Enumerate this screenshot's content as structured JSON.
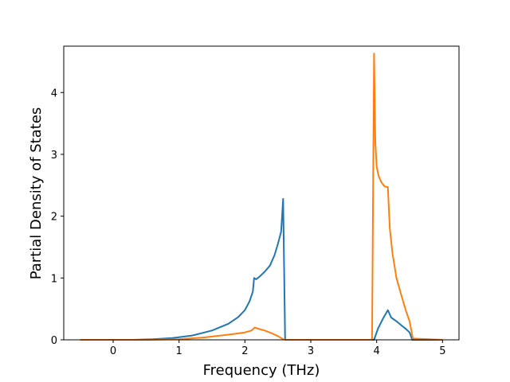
{
  "chart_data": {
    "type": "line",
    "title": "",
    "xlabel": "Frequency (THz)",
    "ylabel": "Partial Density of States",
    "xlim": [
      -0.75,
      5.25
    ],
    "ylim": [
      0,
      4.75
    ],
    "xticks": [
      0,
      1,
      2,
      3,
      4,
      5
    ],
    "yticks": [
      0,
      1,
      2,
      3,
      4
    ],
    "xtick_labels": [
      "0",
      "1",
      "2",
      "3",
      "4",
      "5"
    ],
    "ytick_labels": [
      "0",
      "1",
      "2",
      "3",
      "4"
    ],
    "grid": false,
    "legend": "none",
    "series": [
      {
        "color": "#1f77b4",
        "x": [
          -0.5,
          0.0,
          0.3,
          0.6,
          0.9,
          1.2,
          1.5,
          1.75,
          1.9,
          2.0,
          2.07,
          2.12,
          2.14,
          2.17,
          2.22,
          2.3,
          2.38,
          2.45,
          2.5,
          2.55,
          2.58,
          2.61,
          3.0,
          3.5,
          3.96,
          4.02,
          4.1,
          4.17,
          4.22,
          4.3,
          4.38,
          4.45,
          4.5,
          4.54,
          5.0
        ],
        "y": [
          0.0,
          0.0,
          0.0,
          0.01,
          0.03,
          0.07,
          0.15,
          0.26,
          0.37,
          0.48,
          0.62,
          0.78,
          1.0,
          0.98,
          1.02,
          1.1,
          1.2,
          1.37,
          1.55,
          1.75,
          2.28,
          0.0,
          0.0,
          0.0,
          0.0,
          0.18,
          0.35,
          0.48,
          0.36,
          0.3,
          0.23,
          0.17,
          0.12,
          0.0,
          0.0
        ]
      },
      {
        "color": "#ff7f0e",
        "x": [
          -0.5,
          0.0,
          0.5,
          1.0,
          1.4,
          1.8,
          2.0,
          2.1,
          2.15,
          2.2,
          2.3,
          2.4,
          2.5,
          2.58,
          2.62,
          3.0,
          3.5,
          3.93,
          3.96,
          3.98,
          4.0,
          4.03,
          4.07,
          4.12,
          4.17,
          4.2,
          4.24,
          4.3,
          4.38,
          4.45,
          4.5,
          4.55,
          5.0
        ],
        "y": [
          0.0,
          0.0,
          0.0,
          0.01,
          0.04,
          0.09,
          0.12,
          0.15,
          0.2,
          0.18,
          0.15,
          0.11,
          0.06,
          0.01,
          0.0,
          0.0,
          0.0,
          0.0,
          4.63,
          3.2,
          2.8,
          2.65,
          2.55,
          2.48,
          2.47,
          1.8,
          1.4,
          1.0,
          0.7,
          0.45,
          0.3,
          0.02,
          0.0
        ]
      }
    ]
  }
}
